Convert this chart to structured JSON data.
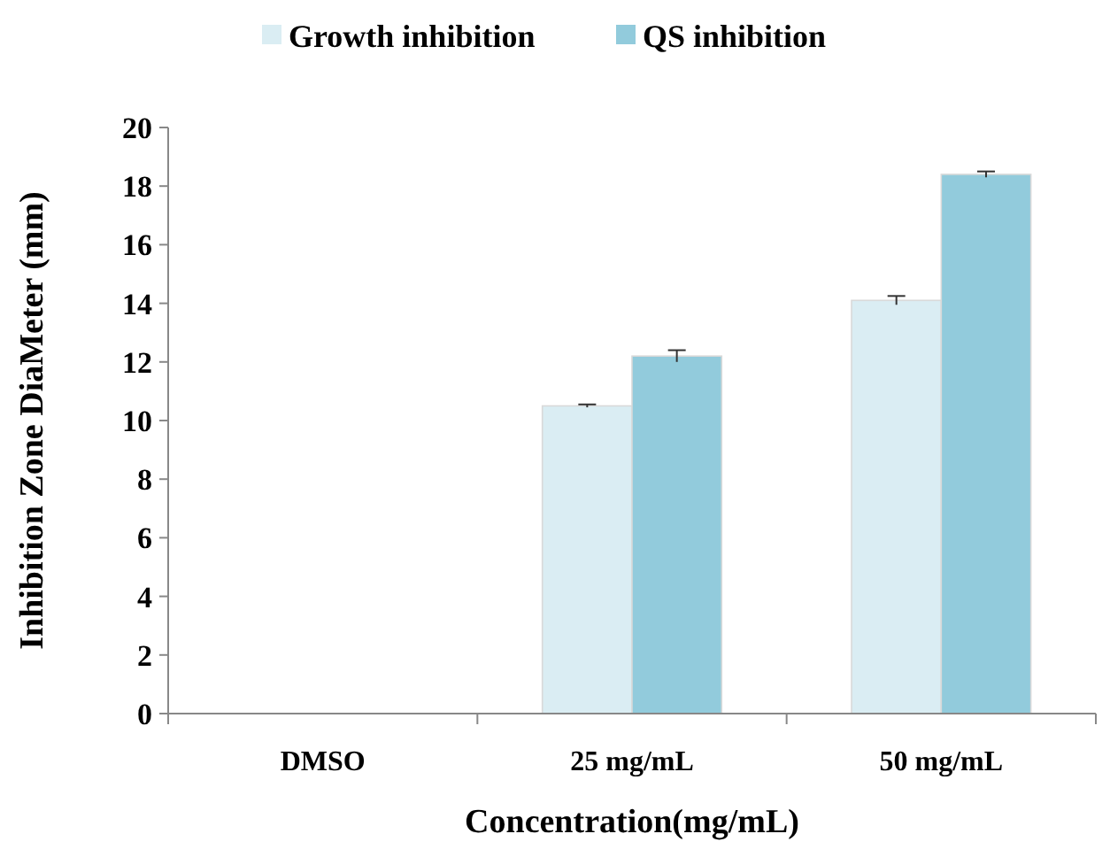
{
  "chart_data": {
    "type": "bar",
    "xlabel": "Concentration(mg/mL)",
    "ylabel": "Inhibition Zone DiaMeter (mm)",
    "categories": [
      "DMSO",
      "25 mg/mL",
      "50 mg/mL"
    ],
    "series": [
      {
        "name": "Growth inhibition",
        "color": "#daedf3",
        "values": [
          0,
          10.5,
          14.1
        ],
        "errors": [
          null,
          0.05,
          0.15
        ]
      },
      {
        "name": "QS inhibition",
        "color": "#92cbdc",
        "values": [
          0,
          12.2,
          18.4
        ],
        "errors": [
          null,
          0.2,
          0.1
        ]
      }
    ],
    "ylim": [
      0,
      20
    ],
    "yticks": [
      0,
      2,
      4,
      6,
      8,
      10,
      12,
      14,
      16,
      18,
      20
    ],
    "grid": false,
    "legend": "top"
  }
}
